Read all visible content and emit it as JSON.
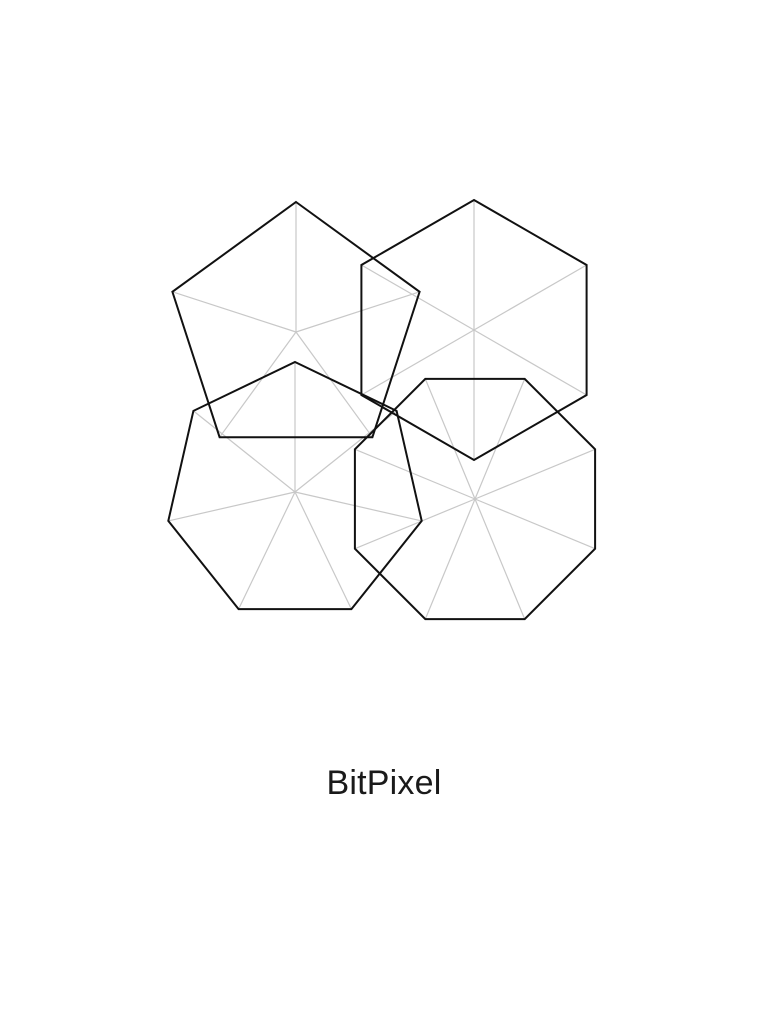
{
  "app": {
    "label": "BitPixel"
  },
  "colors": {
    "background": "#ffffff",
    "outline": "#111111",
    "spoke": "#c8c8c8",
    "text": "#1a1a1a"
  },
  "polygons": [
    {
      "name": "pentagon",
      "sides": 5
    },
    {
      "name": "hexagon",
      "sides": 6
    },
    {
      "name": "heptagon",
      "sides": 7
    },
    {
      "name": "octagon",
      "sides": 8
    }
  ]
}
